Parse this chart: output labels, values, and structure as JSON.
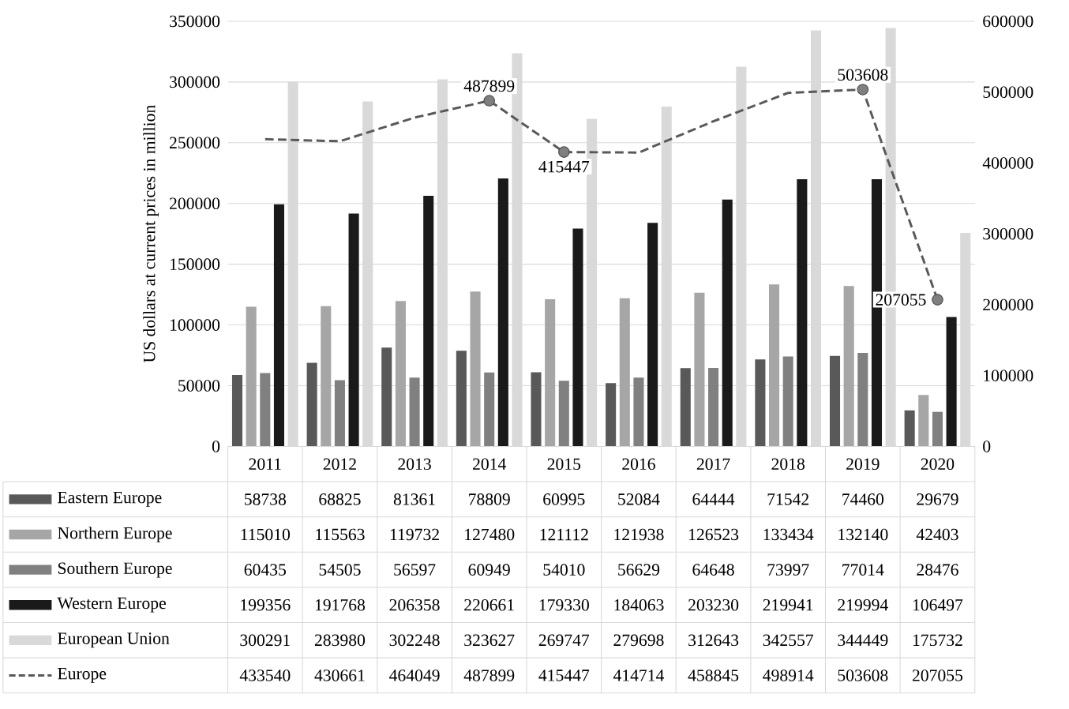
{
  "chart_data": {
    "type": "bar",
    "ylabel": "US dollars at current prices in million",
    "categories": [
      "2011",
      "2012",
      "2013",
      "2014",
      "2015",
      "2016",
      "2017",
      "2018",
      "2019",
      "2020"
    ],
    "series": [
      {
        "name": "Eastern Europe",
        "color": "#595959",
        "values": [
          58738,
          68825,
          81361,
          78809,
          60995,
          52084,
          64444,
          71542,
          74460,
          29679
        ]
      },
      {
        "name": "Northern Europe",
        "color": "#a6a6a6",
        "values": [
          115010,
          115563,
          119732,
          127480,
          121112,
          121938,
          126523,
          133434,
          132140,
          42403
        ]
      },
      {
        "name": "Southern Europe",
        "color": "#808080",
        "values": [
          60435,
          54505,
          56597,
          60949,
          54010,
          56629,
          64648,
          73997,
          77014,
          28476
        ]
      },
      {
        "name": "Western Europe",
        "color": "#1a1a1a",
        "values": [
          199356,
          191768,
          206358,
          220661,
          179330,
          184063,
          203230,
          219941,
          219994,
          106497
        ]
      },
      {
        "name": "European Union",
        "color": "#d9d9d9",
        "values": [
          300291,
          283980,
          302248,
          323627,
          269747,
          279698,
          312643,
          342557,
          344449,
          175732
        ]
      },
      {
        "name": "Europe",
        "type": "line",
        "axis": "y2",
        "line_style": "dashed",
        "color": "#595959",
        "values": [
          433540,
          430661,
          464049,
          487899,
          415447,
          414714,
          458845,
          498914,
          503608,
          207055
        ]
      },
      {
        "type": "scatter",
        "axis": "y2",
        "marker": "circle",
        "color": "#7f7f7f",
        "values": [
          null,
          null,
          null,
          487899,
          415447,
          null,
          null,
          null,
          503608,
          207055
        ],
        "value_labels": [
          null,
          null,
          null,
          "487899",
          "415447",
          null,
          null,
          null,
          "503608",
          "207055"
        ]
      }
    ],
    "ylim": [
      0,
      350000
    ],
    "yticks": [
      0,
      50000,
      100000,
      150000,
      200000,
      250000,
      300000,
      350000
    ],
    "y2lim": [
      0,
      600000
    ],
    "y2ticks": [
      0,
      100000,
      200000,
      300000,
      400000,
      500000,
      600000
    ],
    "grid": "y",
    "legend": "bottom",
    "data_labels": true
  }
}
